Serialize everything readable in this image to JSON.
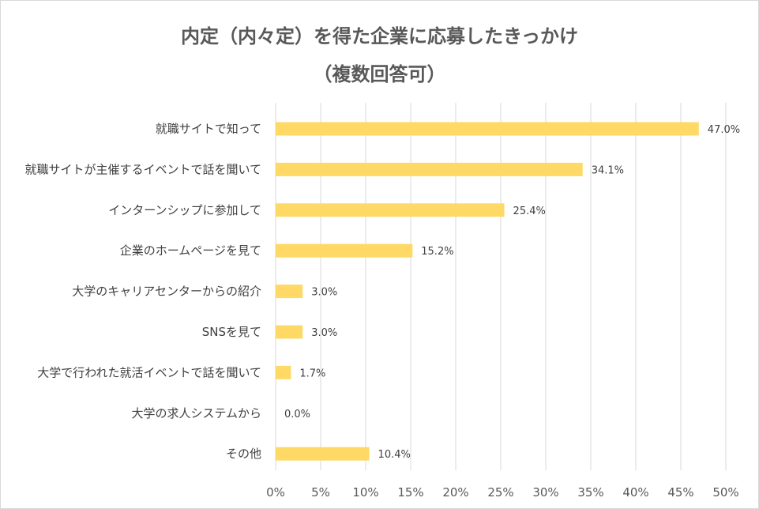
{
  "chart_data": {
    "type": "bar",
    "orientation": "horizontal",
    "title_lines": [
      "内定（内々定）を得た企業に応募したきっかけ",
      "（複数回答可）"
    ],
    "categories": [
      "就職サイトで知って",
      "就職サイトが主催するイベントで話を聞いて",
      "インターンシップに参加して",
      "企業のホームページを見て",
      "大学のキャリアセンターからの紹介",
      "SNSを見て",
      "大学で行われた就活イベントで話を聞いて",
      "大学の求人システムから",
      "その他"
    ],
    "values": [
      47.0,
      34.1,
      25.4,
      15.2,
      3.0,
      3.0,
      1.7,
      0.0,
      10.4
    ],
    "value_labels": [
      "47.0%",
      "34.1%",
      "25.4%",
      "15.2%",
      "3.0%",
      "3.0%",
      "1.7%",
      "0.0%",
      "10.4%"
    ],
    "xlim": [
      0,
      50
    ],
    "x_ticks": [
      "0%",
      "5%",
      "10%",
      "15%",
      "20%",
      "25%",
      "30%",
      "35%",
      "40%",
      "45%",
      "50%"
    ],
    "grid": "vertical",
    "legend": "none",
    "bar_color": "#ffd966",
    "grid_color": "#d9d9d9"
  }
}
